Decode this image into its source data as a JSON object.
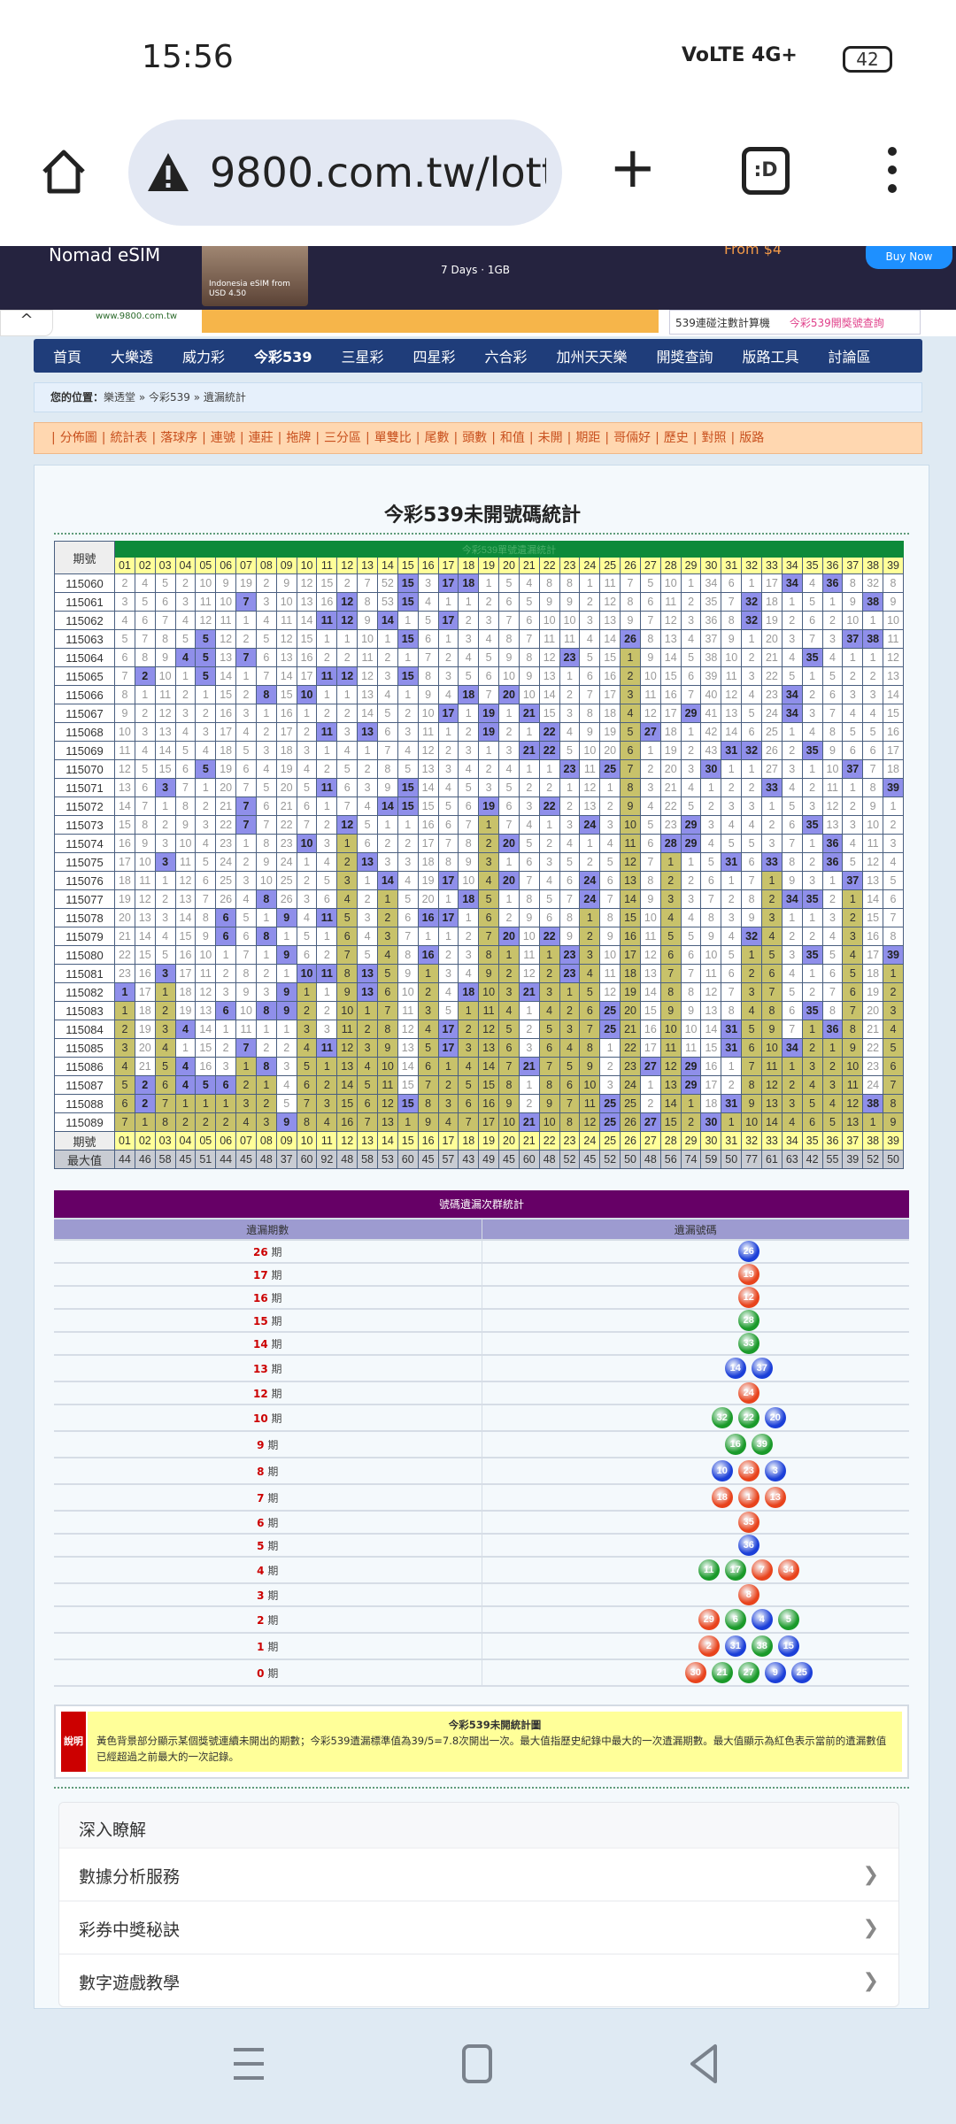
{
  "status_bar": {
    "time": "15:56",
    "signal": "VoLTE 4G+",
    "battery": "42"
  },
  "browser": {
    "url": "9800.com.tw/lott",
    "tab_label": ":D"
  },
  "ad": {
    "brand": "Nomad eSIM",
    "image_caption": "Indonesia eSIM from USD 4.50",
    "plan": "7 Days · 1GB",
    "price": "From $4",
    "cta": "Buy Now"
  },
  "sub_header": {
    "site": "www.9800.com.tw",
    "links": [
      "539連碰注數計算機",
      "今彩539開獎號查詢"
    ]
  },
  "nav": {
    "items": [
      "首頁",
      "大樂透",
      "威力彩",
      "今彩539",
      "三星彩",
      "四星彩",
      "六合彩",
      "加州天天樂",
      "開獎查詢",
      "版路工具",
      "討論區"
    ],
    "active": 3
  },
  "breadcrumb": {
    "label": "您的位置：",
    "items": [
      "樂透堂",
      "今彩539",
      "遺漏統計"
    ],
    "separator": " » "
  },
  "tools": [
    "分佈圖",
    "統計表",
    "落球序",
    "連號",
    "連莊",
    "拖牌",
    "三分區",
    "單雙比",
    "尾數",
    "頭數",
    "和值",
    "未開",
    "期距",
    "哥倆好",
    "歷史",
    "對照",
    "版路"
  ],
  "page_title": "今彩539未開號碼統計",
  "miss_table": {
    "banner": "今彩539單號遺漏統計",
    "period_header": "期號",
    "max_label": "最大值",
    "columns": [
      "01",
      "02",
      "03",
      "04",
      "05",
      "06",
      "07",
      "08",
      "09",
      "10",
      "11",
      "12",
      "13",
      "14",
      "15",
      "16",
      "17",
      "18",
      "19",
      "20",
      "21",
      "22",
      "23",
      "24",
      "25",
      "26",
      "27",
      "28",
      "29",
      "30",
      "31",
      "32",
      "33",
      "34",
      "35",
      "36",
      "37",
      "38",
      "39"
    ],
    "first_row_values": [
      2,
      4,
      5,
      2,
      10,
      9,
      19,
      2,
      9,
      12,
      15,
      2,
      7,
      52,
      15,
      3,
      17,
      18,
      1,
      5,
      4,
      8,
      8,
      1,
      11,
      7,
      5,
      10,
      1,
      34,
      6,
      1,
      17,
      34,
      4,
      36,
      8,
      32,
      8
    ],
    "rows": [
      {
        "period": "115060",
        "drawn": [
          15,
          17,
          18,
          34,
          36
        ]
      },
      {
        "period": "115061",
        "drawn": [
          7,
          12,
          15,
          32,
          38
        ]
      },
      {
        "period": "115062",
        "drawn": [
          11,
          12,
          14,
          17,
          32
        ]
      },
      {
        "period": "115063",
        "drawn": [
          5,
          15,
          26,
          37,
          38
        ]
      },
      {
        "period": "115064",
        "drawn": [
          4,
          5,
          7,
          23,
          35
        ]
      },
      {
        "period": "115065",
        "drawn": [
          2,
          5,
          11,
          12,
          15
        ]
      },
      {
        "period": "115066",
        "drawn": [
          8,
          10,
          18,
          20,
          34
        ]
      },
      {
        "period": "115067",
        "drawn": [
          17,
          19,
          21,
          29,
          34
        ]
      },
      {
        "period": "115068",
        "drawn": [
          11,
          13,
          19,
          22,
          27
        ]
      },
      {
        "period": "115069",
        "drawn": [
          21,
          22,
          31,
          32,
          35
        ]
      },
      {
        "period": "115070",
        "drawn": [
          5,
          23,
          25,
          30,
          37
        ]
      },
      {
        "period": "115071",
        "drawn": [
          3,
          11,
          15,
          33,
          39
        ]
      },
      {
        "period": "115072",
        "drawn": [
          7,
          14,
          15,
          19,
          22
        ]
      },
      {
        "period": "115073",
        "drawn": [
          7,
          12,
          24,
          29,
          35
        ]
      },
      {
        "period": "115074",
        "drawn": [
          10,
          20,
          28,
          29,
          36
        ]
      },
      {
        "period": "115075",
        "drawn": [
          3,
          13,
          31,
          33,
          36
        ]
      },
      {
        "period": "115076",
        "drawn": [
          14,
          17,
          20,
          24,
          37
        ]
      },
      {
        "period": "115077",
        "drawn": [
          8,
          18,
          24,
          34,
          35
        ]
      },
      {
        "period": "115078",
        "drawn": [
          6,
          9,
          11,
          16,
          17
        ]
      },
      {
        "period": "115079",
        "drawn": [
          6,
          8,
          20,
          22,
          32
        ]
      },
      {
        "period": "115080",
        "drawn": [
          9,
          16,
          23,
          35,
          39
        ]
      },
      {
        "period": "115081",
        "drawn": [
          3,
          10,
          11,
          13,
          23
        ]
      },
      {
        "period": "115082",
        "drawn": [
          1,
          9,
          13,
          18,
          21
        ]
      },
      {
        "period": "115083",
        "drawn": [
          6,
          8,
          9,
          25,
          35
        ]
      },
      {
        "period": "115084",
        "drawn": [
          4,
          17,
          25,
          31,
          36
        ]
      },
      {
        "period": "115085",
        "drawn": [
          7,
          11,
          17,
          31,
          34
        ]
      },
      {
        "period": "115086",
        "drawn": [
          4,
          8,
          21,
          27,
          29
        ]
      },
      {
        "period": "115087",
        "drawn": [
          2,
          4,
          5,
          6,
          29
        ]
      },
      {
        "period": "115088",
        "drawn": [
          2,
          15,
          25,
          31,
          38
        ]
      },
      {
        "period": "115089",
        "drawn": [
          9,
          21,
          25,
          27,
          30
        ]
      }
    ],
    "max_values": [
      44,
      46,
      58,
      45,
      51,
      44,
      45,
      48,
      37,
      60,
      92,
      48,
      58,
      53,
      60,
      45,
      57,
      43,
      49,
      45,
      60,
      48,
      52,
      45,
      52,
      50,
      48,
      56,
      74,
      59,
      50,
      77,
      61,
      63,
      42,
      55,
      39,
      52,
      50
    ]
  },
  "group_table": {
    "title": "號碼遺漏次群統計",
    "col1": "遺漏期數",
    "col2": "遺漏號碼",
    "unit": "期",
    "ball_colors": {
      "red": "#e8431c",
      "green": "#1a9a2a",
      "blue": "#1b3fd8"
    },
    "rows": [
      {
        "gap": "26",
        "balls": [
          [
            "26",
            "blue"
          ]
        ]
      },
      {
        "gap": "17",
        "balls": [
          [
            "19",
            "red"
          ]
        ]
      },
      {
        "gap": "16",
        "balls": [
          [
            "12",
            "red"
          ]
        ]
      },
      {
        "gap": "15",
        "balls": [
          [
            "28",
            "green"
          ]
        ]
      },
      {
        "gap": "14",
        "balls": [
          [
            "33",
            "green"
          ]
        ]
      },
      {
        "gap": "13",
        "balls": [
          [
            "14",
            "blue"
          ],
          [
            "37",
            "blue"
          ]
        ]
      },
      {
        "gap": "12",
        "balls": [
          [
            "24",
            "red"
          ]
        ]
      },
      {
        "gap": "10",
        "balls": [
          [
            "32",
            "green"
          ],
          [
            "22",
            "green"
          ],
          [
            "20",
            "blue"
          ]
        ]
      },
      {
        "gap": "9",
        "balls": [
          [
            "16",
            "green"
          ],
          [
            "39",
            "green"
          ]
        ]
      },
      {
        "gap": "8",
        "balls": [
          [
            "10",
            "blue"
          ],
          [
            "23",
            "red"
          ],
          [
            "3",
            "blue"
          ]
        ]
      },
      {
        "gap": "7",
        "balls": [
          [
            "18",
            "red"
          ],
          [
            "1",
            "red"
          ],
          [
            "13",
            "red"
          ]
        ]
      },
      {
        "gap": "6",
        "balls": [
          [
            "35",
            "red"
          ]
        ]
      },
      {
        "gap": "5",
        "balls": [
          [
            "36",
            "blue"
          ]
        ]
      },
      {
        "gap": "4",
        "balls": [
          [
            "11",
            "green"
          ],
          [
            "17",
            "green"
          ],
          [
            "7",
            "red"
          ],
          [
            "34",
            "red"
          ]
        ]
      },
      {
        "gap": "3",
        "balls": [
          [
            "8",
            "red"
          ]
        ]
      },
      {
        "gap": "2",
        "balls": [
          [
            "29",
            "red"
          ],
          [
            "6",
            "green"
          ],
          [
            "4",
            "blue"
          ],
          [
            "5",
            "green"
          ]
        ]
      },
      {
        "gap": "1",
        "balls": [
          [
            "2",
            "red"
          ],
          [
            "31",
            "blue"
          ],
          [
            "38",
            "green"
          ],
          [
            "15",
            "blue"
          ]
        ]
      },
      {
        "gap": "0",
        "balls": [
          [
            "30",
            "red"
          ],
          [
            "21",
            "green"
          ],
          [
            "27",
            "green"
          ],
          [
            "9",
            "blue"
          ],
          [
            "25",
            "blue"
          ]
        ]
      }
    ]
  },
  "note": {
    "label": "說明",
    "title": "今彩539未開統計圖",
    "text": "黃色背景部分顯示某個獎號連續未開出的期數；今彩539遺漏標準值為39/5=7.8次開出一次。最大值指歷史紀錄中最大的一次遺漏期數。最大值顯示為紅色表示當前的遺漏數值已經超過之前最大的一次記錄。"
  },
  "learn_more": {
    "title": "深入瞭解",
    "items": [
      "數據分析服務",
      "彩券中獎秘訣",
      "數字遊戲教學"
    ]
  },
  "colors": {
    "nav": "#1f3d7a",
    "hit": "#8f8fea",
    "current_gap": "#c8c26a",
    "header_yellow": "#ffff99",
    "group_header": "#660066"
  }
}
